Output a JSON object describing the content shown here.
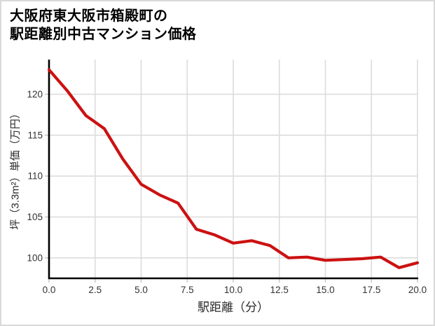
{
  "header": {
    "title": "大阪府東大阪市箱殿町の\n駅距離別中古マンション価格"
  },
  "chart_data": {
    "type": "line",
    "title": "大阪府東大阪市箱殿町の駅距離別中古マンション価格",
    "xlabel": "駅距離（分）",
    "ylabel": "坪（3.3m²）単価（万円）",
    "x": [
      0,
      1,
      2,
      3,
      4,
      5,
      6,
      7,
      8,
      9,
      10,
      11,
      12,
      13,
      14,
      15,
      16,
      17,
      18,
      19,
      20
    ],
    "values": [
      123.0,
      120.4,
      117.4,
      115.8,
      112.1,
      109.0,
      107.7,
      106.7,
      103.5,
      102.8,
      101.8,
      102.1,
      101.5,
      100.0,
      100.1,
      99.7,
      99.8,
      99.9,
      100.1,
      98.8,
      99.4
    ],
    "xticks": [
      0,
      2.5,
      5,
      7.5,
      10,
      12.5,
      15,
      17.5,
      20
    ],
    "xtick_labels": [
      "0.0",
      "2.5",
      "5.0",
      "7.5",
      "10.0",
      "12.5",
      "15.0",
      "17.5",
      "20.0"
    ],
    "yticks": [
      100,
      105,
      110,
      115,
      120
    ],
    "ytick_labels": [
      "100",
      "105",
      "110",
      "115",
      "120"
    ],
    "xlim": [
      0,
      20
    ],
    "ylim": [
      97.5,
      124.24
    ],
    "grid": true,
    "legend": false,
    "line_color": "#cc1111",
    "grid_color": "#dcdcdc",
    "tick_color": "#c9c9c9",
    "axis_color": "#000000",
    "tick_label_color": "#333333"
  }
}
